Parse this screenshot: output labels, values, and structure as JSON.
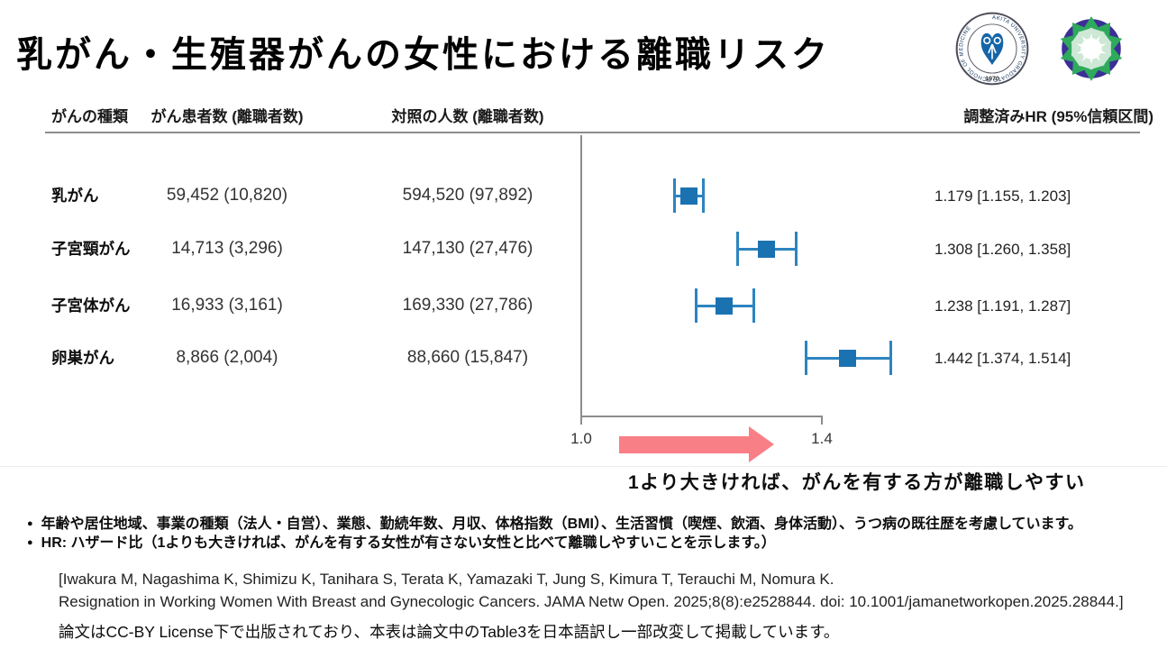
{
  "title": "乳がん・生殖器がんの女性における離職リスク",
  "logos": {
    "akita_seal": {
      "ring_text": "AKITA UNIVERSITY GRADUATE SCHOOL OF MEDICINE",
      "year": "1970",
      "emblem_color": "#1565A8"
    },
    "mosaic": {
      "green": "#2FA95C",
      "purple": "#3B2F96"
    }
  },
  "table": {
    "headers": {
      "cancer_type": "がんの種類",
      "patients": "がん患者数 (離職者数)",
      "controls": "対照の人数 (離職者数)",
      "adjusted_hr": "調整済みHR (95%信頼区間)"
    },
    "rows": [
      {
        "cancer": "乳がん",
        "patients": "59,452 (10,820)",
        "controls": "594,520 (97,892)",
        "hr_text": "1.179 [1.155, 1.203]"
      },
      {
        "cancer": "子宮頸がん",
        "patients": "14,713 (3,296)",
        "controls": "147,130 (27,476)",
        "hr_text": "1.308 [1.260, 1.358]"
      },
      {
        "cancer": "子宮体がん",
        "patients": "16,933 (3,161)",
        "controls": "169,330 (27,786)",
        "hr_text": "1.238 [1.191, 1.287]"
      },
      {
        "cancer": "卵巣がん",
        "patients": "8,866 (2,004)",
        "controls": "88,660 (15,847)",
        "hr_text": "1.442 [1.374, 1.514]"
      }
    ]
  },
  "chart_data": {
    "type": "scatter",
    "subtype": "forest_plot",
    "series": [
      {
        "name": "乳がん",
        "hr": 1.179,
        "ci_low": 1.155,
        "ci_high": 1.203
      },
      {
        "name": "子宮頸がん",
        "hr": 1.308,
        "ci_low": 1.26,
        "ci_high": 1.358
      },
      {
        "name": "子宮体がん",
        "hr": 1.238,
        "ci_low": 1.191,
        "ci_high": 1.287
      },
      {
        "name": "卵巣がん",
        "hr": 1.442,
        "ci_low": 1.374,
        "ci_high": 1.514
      }
    ],
    "x_ticks": [
      "1.0",
      "1.4"
    ],
    "x_tick_values": [
      1.0,
      1.4
    ],
    "xlim": [
      0.96,
      1.56
    ],
    "grid": false,
    "legend": "none",
    "annotation": "1より大きければ、がんを有する方が離職しやすい",
    "marker_color": "#1B72B1",
    "errorbar_color": "#2C84C0",
    "arrow_color": "#F97F86",
    "axis_color": "#8C8C8C"
  },
  "notes": [
    "年齢や居住地域、事業の種類（法人・自営）、業態、勤続年数、月収、体格指数（BMI）、生活習慣（喫煙、飲酒、身体活動）、うつ病の既往歴を考慮しています。",
    "HR: ハザード比（1よりも大きければ、がんを有する女性が有さない女性と比べて離職しやすいことを示します。）"
  ],
  "citation": {
    "line1": "[Iwakura M, Nagashima K, Shimizu K, Tanihara S, Terata K, Yamazaki T, Jung S, Kimura T, Terauchi M, Nomura K.",
    "line2": "Resignation in Working Women With Breast and Gynecologic Cancers. JAMA Netw Open. 2025;8(8):e2528844. doi: 10.1001/jamanetworkopen.2025.28844.]"
  },
  "license_note": "論文はCC-BY License下で出版されており、本表は論文中のTable3を日本語訳し一部改変して掲載しています。"
}
